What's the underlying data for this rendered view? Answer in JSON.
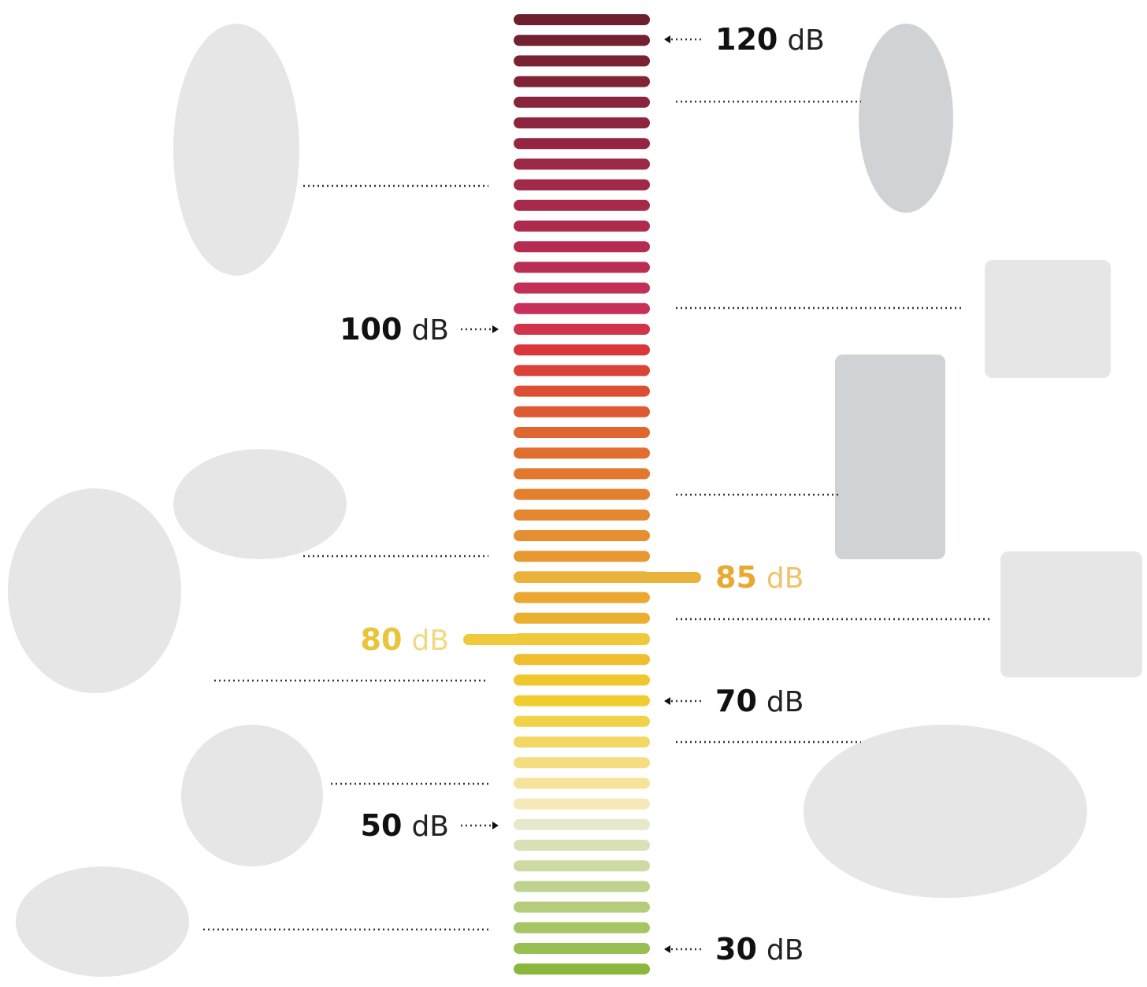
{
  "scale_labels": [
    {
      "value": "120",
      "unit": "dB"
    },
    {
      "value": "100",
      "unit": "dB"
    },
    {
      "value": "85",
      "unit": "dB"
    },
    {
      "value": "80",
      "unit": "dB"
    },
    {
      "value": "70",
      "unit": "dB"
    },
    {
      "value": "50",
      "unit": "dB"
    },
    {
      "value": "30",
      "unit": "dB"
    }
  ]
}
